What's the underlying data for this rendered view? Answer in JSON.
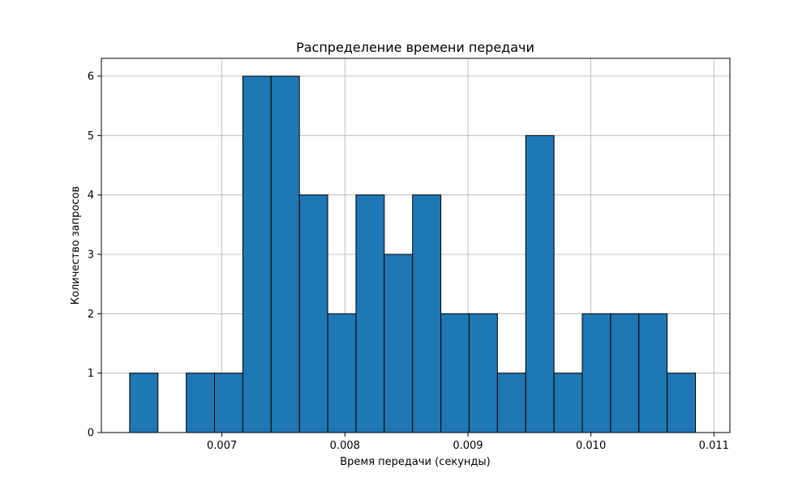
{
  "chart_data": {
    "type": "bar",
    "title": "Распределение времени передачи",
    "xlabel": "Время передачи (секунды)",
    "ylabel": "Количество запросов",
    "xlim": [
      0.00602,
      0.01113
    ],
    "ylim": [
      0,
      6.3
    ],
    "grid": true,
    "bar_color": "#1f77b4",
    "edge_color": "#000000",
    "bins": [
      {
        "x0": 0.00625,
        "x1": 0.00648,
        "count": 1
      },
      {
        "x0": 0.00648,
        "x1": 0.00671,
        "count": 0
      },
      {
        "x0": 0.00671,
        "x1": 0.00694,
        "count": 1
      },
      {
        "x0": 0.00694,
        "x1": 0.00717,
        "count": 1
      },
      {
        "x0": 0.00717,
        "x1": 0.0074,
        "count": 6
      },
      {
        "x0": 0.0074,
        "x1": 0.00763,
        "count": 6
      },
      {
        "x0": 0.00763,
        "x1": 0.00786,
        "count": 4
      },
      {
        "x0": 0.00786,
        "x1": 0.00809,
        "count": 2
      },
      {
        "x0": 0.00809,
        "x1": 0.00832,
        "count": 4
      },
      {
        "x0": 0.00832,
        "x1": 0.00855,
        "count": 3
      },
      {
        "x0": 0.00855,
        "x1": 0.00878,
        "count": 4
      },
      {
        "x0": 0.00878,
        "x1": 0.00901,
        "count": 2
      },
      {
        "x0": 0.00901,
        "x1": 0.00924,
        "count": 2
      },
      {
        "x0": 0.00924,
        "x1": 0.00947,
        "count": 1
      },
      {
        "x0": 0.00947,
        "x1": 0.0097,
        "count": 5
      },
      {
        "x0": 0.0097,
        "x1": 0.00993,
        "count": 1
      },
      {
        "x0": 0.00993,
        "x1": 0.01016,
        "count": 2
      },
      {
        "x0": 0.01016,
        "x1": 0.01039,
        "count": 2
      },
      {
        "x0": 0.01039,
        "x1": 0.01062,
        "count": 2
      },
      {
        "x0": 0.01062,
        "x1": 0.01085,
        "count": 1
      }
    ],
    "x_ticks": [
      0.007,
      0.008,
      0.009,
      0.01,
      0.011
    ],
    "x_tick_labels": [
      "0.007",
      "0.008",
      "0.009",
      "0.010",
      "0.011"
    ],
    "y_ticks": [
      0,
      1,
      2,
      3,
      4,
      5,
      6
    ],
    "y_tick_labels": [
      "0",
      "1",
      "2",
      "3",
      "4",
      "5",
      "6"
    ]
  }
}
